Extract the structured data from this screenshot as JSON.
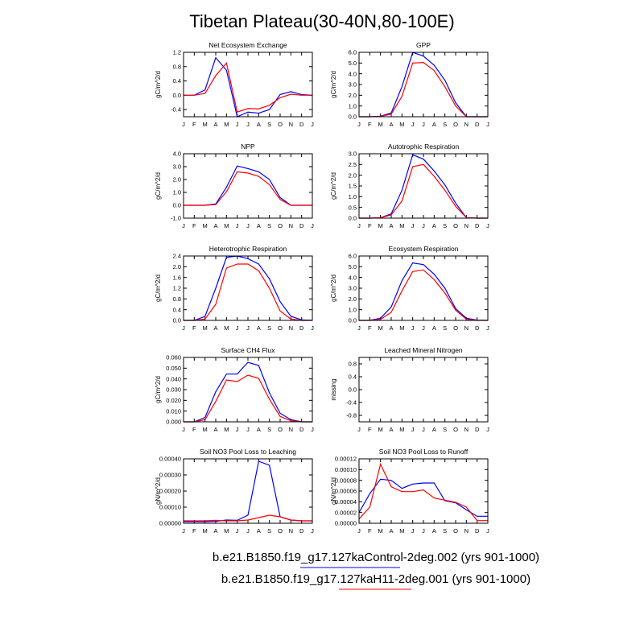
{
  "title": "Tibetan Plateau(30-40N,80-100E)",
  "months": [
    "J",
    "F",
    "M",
    "A",
    "M",
    "J",
    "J",
    "A",
    "S",
    "O",
    "N",
    "D",
    "J"
  ],
  "legend": [
    {
      "label": "b.e21.B1850.f19_g17.127kaControl-2deg.002 (yrs 901-1000)",
      "color": "#0000ff"
    },
    {
      "label": "b.e21.B1850.f19_g17.127kaH11-2deg.001 (yrs 901-1000)",
      "color": "#ff0000"
    }
  ],
  "chart_data": [
    {
      "type": "line",
      "title": "Net Ecosystem Exchange",
      "ylabel": "gC/m^2/d",
      "ylim": [
        -0.6,
        1.2
      ],
      "yticks": [
        "1.2",
        "0.8",
        "0.4",
        "0.0",
        "-0.4"
      ],
      "ytick_values": [
        1.2,
        0.8,
        0.4,
        0.0,
        -0.4
      ],
      "series": [
        {
          "color": "#0000ff",
          "values": [
            0.0,
            0.0,
            0.15,
            1.05,
            0.7,
            -0.6,
            -0.47,
            -0.5,
            -0.4,
            0.02,
            0.1,
            0.02,
            0.0
          ]
        },
        {
          "color": "#ff0000",
          "values": [
            0.0,
            0.0,
            0.05,
            0.55,
            0.9,
            -0.47,
            -0.37,
            -0.38,
            -0.28,
            -0.07,
            0.03,
            0.0,
            0.0
          ]
        }
      ]
    },
    {
      "type": "line",
      "title": "GPP",
      "ylabel": "gC/m^2/d",
      "ylim": [
        0,
        6
      ],
      "yticks": [
        "6.0",
        "5.0",
        "4.0",
        "3.0",
        "2.0",
        "1.0",
        "0.0"
      ],
      "ytick_values": [
        6,
        5,
        4,
        3,
        2,
        1,
        0
      ],
      "series": [
        {
          "color": "#0000ff",
          "values": [
            0.0,
            0.0,
            0.05,
            0.35,
            2.8,
            6.0,
            5.65,
            4.8,
            3.4,
            1.3,
            0.0,
            0.0,
            0.0
          ]
        },
        {
          "color": "#ff0000",
          "values": [
            0.0,
            0.0,
            0.03,
            0.25,
            1.9,
            5.0,
            5.05,
            4.3,
            2.8,
            1.0,
            0.0,
            0.0,
            0.0
          ]
        }
      ]
    },
    {
      "type": "line",
      "title": "NPP",
      "ylabel": "gC/m^2/d",
      "ylim": [
        -1,
        4
      ],
      "yticks": [
        "4.0",
        "3.0",
        "2.0",
        "1.0",
        "0.0",
        "-1.0"
      ],
      "ytick_values": [
        4,
        3,
        2,
        1,
        0,
        -1
      ],
      "series": [
        {
          "color": "#0000ff",
          "values": [
            0.0,
            0.0,
            0.0,
            0.1,
            1.4,
            3.05,
            2.85,
            2.6,
            2.0,
            0.6,
            0.0,
            0.0,
            0.0
          ]
        },
        {
          "color": "#ff0000",
          "values": [
            0.0,
            0.0,
            0.0,
            0.05,
            1.05,
            2.6,
            2.5,
            2.25,
            1.6,
            0.45,
            0.0,
            0.0,
            0.0
          ]
        }
      ]
    },
    {
      "type": "line",
      "title": "Autotrophic Respiration",
      "ylabel": "gC/m^2/d",
      "ylim": [
        0,
        3
      ],
      "yticks": [
        "3.0",
        "2.5",
        "2.0",
        "1.5",
        "1.0",
        "0.5",
        "0.0"
      ],
      "ytick_values": [
        3,
        2.5,
        2,
        1.5,
        1,
        0.5,
        0
      ],
      "series": [
        {
          "color": "#0000ff",
          "values": [
            0.0,
            0.0,
            0.02,
            0.2,
            1.3,
            2.95,
            2.75,
            2.2,
            1.55,
            0.7,
            0.02,
            0.0,
            0.0
          ]
        },
        {
          "color": "#ff0000",
          "values": [
            0.0,
            0.0,
            0.02,
            0.15,
            0.8,
            2.4,
            2.5,
            1.95,
            1.3,
            0.55,
            0.02,
            0.0,
            0.0
          ]
        }
      ]
    },
    {
      "type": "line",
      "title": "Heterotrophic Respiration",
      "ylabel": "gC/m^2/d",
      "ylim": [
        0,
        2.4
      ],
      "yticks": [
        "2.4",
        "2.0",
        "1.6",
        "1.2",
        "0.8",
        "0.4",
        "0.0"
      ],
      "ytick_values": [
        2.4,
        2.0,
        1.6,
        1.2,
        0.8,
        0.4,
        0.0
      ],
      "series": [
        {
          "color": "#0000ff",
          "values": [
            0.0,
            0.0,
            0.15,
            1.2,
            2.35,
            2.4,
            2.3,
            2.1,
            1.55,
            0.7,
            0.15,
            0.02,
            0.0
          ]
        },
        {
          "color": "#ff0000",
          "values": [
            0.0,
            0.0,
            0.05,
            0.6,
            1.95,
            2.1,
            2.1,
            1.85,
            1.2,
            0.35,
            0.05,
            0.0,
            0.0
          ]
        }
      ]
    },
    {
      "type": "line",
      "title": "Ecosystem Respiration",
      "ylabel": "gC/m^2/d",
      "ylim": [
        0,
        6
      ],
      "yticks": [
        "6.0",
        "5.0",
        "4.0",
        "3.0",
        "2.0",
        "1.0",
        "0.0"
      ],
      "ytick_values": [
        6,
        5,
        4,
        3,
        2,
        1,
        0
      ],
      "series": [
        {
          "color": "#0000ff",
          "values": [
            0.0,
            0.0,
            0.2,
            1.25,
            3.7,
            5.35,
            5.2,
            4.3,
            3.0,
            1.1,
            0.2,
            0.02,
            0.0
          ]
        },
        {
          "color": "#ff0000",
          "values": [
            0.0,
            0.0,
            0.1,
            0.75,
            2.75,
            4.55,
            4.7,
            3.8,
            2.55,
            0.95,
            0.1,
            0.0,
            0.0
          ]
        }
      ]
    },
    {
      "type": "line",
      "title": "Surface CH4 Flux",
      "ylabel": "gC/m^2/d",
      "ylim": [
        0,
        0.06
      ],
      "yticks": [
        "0.060",
        "0.050",
        "0.040",
        "0.030",
        "0.020",
        "0.010",
        "0.000"
      ],
      "ytick_values": [
        0.06,
        0.05,
        0.04,
        0.03,
        0.02,
        0.01,
        0.0
      ],
      "series": [
        {
          "color": "#0000ff",
          "values": [
            0.0,
            0.0,
            0.004,
            0.028,
            0.0445,
            0.0445,
            0.0555,
            0.0525,
            0.027,
            0.008,
            0.002,
            0.0,
            0.0
          ]
        },
        {
          "color": "#ff0000",
          "values": [
            0.0,
            0.0,
            0.002,
            0.019,
            0.039,
            0.0375,
            0.0435,
            0.0405,
            0.021,
            0.005,
            0.001,
            0.0,
            0.0
          ]
        }
      ]
    },
    {
      "type": "line",
      "title": "Leached Mineral Nitrogen",
      "ylabel": "missing",
      "ylim": [
        -1,
        1
      ],
      "yticks": [
        "0.8",
        "0.4",
        "0.0",
        "-0.4",
        "-0.8"
      ],
      "ytick_values": [
        0.8,
        0.4,
        0.0,
        -0.4,
        -0.8
      ],
      "series": []
    },
    {
      "type": "line",
      "title": "Soil NO3 Pool Loss to Leaching",
      "ylabel": "gN/m^2/d",
      "ylim": [
        0,
        0.0004
      ],
      "yticks": [
        "0.00040",
        "0.00030",
        "0.00020",
        "0.00010",
        "0.00000"
      ],
      "ytick_values": [
        0.0004,
        0.0003,
        0.0002,
        0.0001,
        0.0
      ],
      "series": [
        {
          "color": "#0000ff",
          "values": [
            1e-05,
            1e-05,
            1e-05,
            1.2e-05,
            2e-05,
            1.8e-05,
            5e-05,
            0.000385,
            0.00036,
            4e-05,
            2e-05,
            1.5e-05,
            1.5e-05
          ]
        },
        {
          "color": "#ff0000",
          "values": [
            1.5e-05,
            1.5e-05,
            1.5e-05,
            1.8e-05,
            1.5e-05,
            1.5e-05,
            2e-05,
            3.5e-05,
            5e-05,
            4e-05,
            2e-05,
            1.5e-05,
            1.5e-05
          ]
        }
      ]
    },
    {
      "type": "line",
      "title": "Soil NO3 Pool Loss to Runoff",
      "ylabel": "gN/m^2/d",
      "ylim": [
        0,
        0.00012
      ],
      "yticks": [
        "0.00012",
        "0.00010",
        "0.00008",
        "0.00006",
        "0.00004",
        "0.00002",
        "0.00000"
      ],
      "ytick_values": [
        0.00012,
        0.0001,
        8e-05,
        6e-05,
        4e-05,
        2e-05,
        0.0
      ],
      "series": [
        {
          "color": "#0000ff",
          "values": [
            2e-05,
            5.5e-05,
            8.2e-05,
            8e-05,
            6.5e-05,
            7.3e-05,
            7.5e-05,
            7.5e-05,
            4.2e-05,
            3.8e-05,
            2.5e-05,
            1.3e-05,
            1.3e-05
          ]
        },
        {
          "color": "#ff0000",
          "values": [
            8e-06,
            3e-05,
            0.00011,
            6.8e-05,
            5.9e-05,
            5.9e-05,
            6.2e-05,
            4.7e-05,
            4.3e-05,
            3.9e-05,
            3e-05,
            5e-06,
            5e-06
          ]
        }
      ]
    }
  ]
}
